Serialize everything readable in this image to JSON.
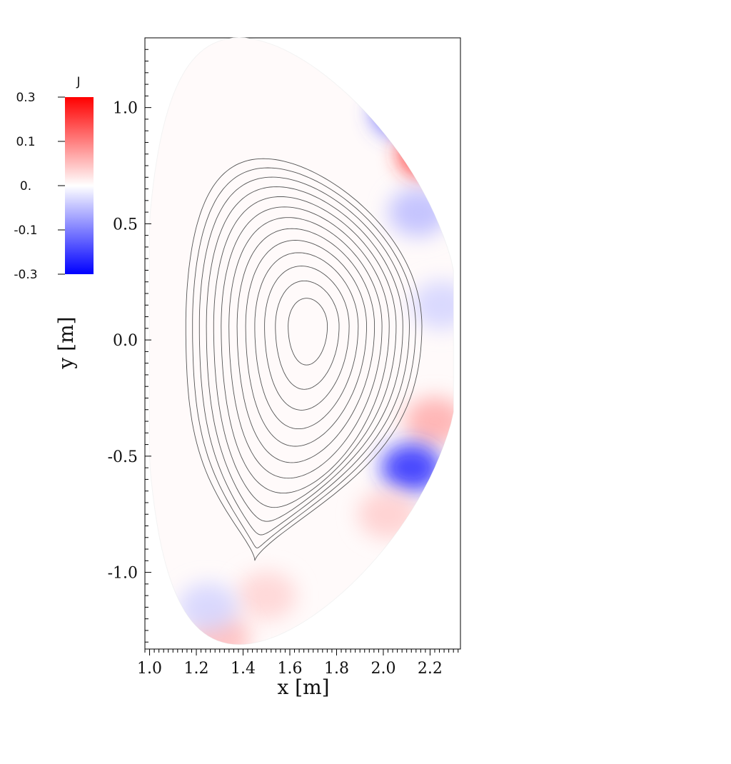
{
  "chart_data": {
    "type": "heatmap",
    "xlabel": "x [m]",
    "ylabel": "y [m]",
    "xlim": [
      0.98,
      2.33
    ],
    "ylim": [
      -1.33,
      1.3
    ],
    "x_ticks": [
      "1.0",
      "1.2",
      "1.4",
      "1.6",
      "1.8",
      "2.0",
      "2.2"
    ],
    "x_tick_values": [
      1.0,
      1.2,
      1.4,
      1.6,
      1.8,
      2.0,
      2.2
    ],
    "y_ticks": [
      "1.0",
      "0.5",
      "0.0",
      "-0.5",
      "-1.0"
    ],
    "y_tick_values": [
      1.0,
      0.5,
      0.0,
      -0.5,
      -1.0
    ],
    "colorbar": {
      "title": "J",
      "tick_labels": [
        "0.3",
        "0.1",
        "0.",
        "-0.1",
        "-0.3"
      ],
      "tick_values": [
        0.3,
        0.1,
        0.0,
        -0.1,
        -0.3
      ],
      "range": [
        -0.3,
        0.3
      ],
      "colors": {
        "max": "#ff0000",
        "mid": "#ffffff",
        "min": "#0000ff"
      }
    },
    "boundary": {
      "r_inner": 1.0,
      "r_outer": 2.28,
      "z_max": 1.3,
      "z_min": -1.31
    },
    "flux_surfaces": {
      "axis": [
        1.68,
        0.06
      ],
      "separatrix_top": [
        1.6,
        0.78
      ],
      "x_point": [
        1.45,
        -0.95
      ],
      "r_left": 1.14,
      "r_right": 2.15,
      "count": 13
    },
    "patches": [
      {
        "x": 2.08,
        "y": 0.98,
        "value": -0.2
      },
      {
        "x": 2.19,
        "y": 0.8,
        "value": 0.25
      },
      {
        "x": 2.15,
        "y": 0.55,
        "value": -0.08
      },
      {
        "x": 2.22,
        "y": -0.35,
        "value": 0.1
      },
      {
        "x": 2.12,
        "y": -0.55,
        "value": -0.25
      },
      {
        "x": 2.02,
        "y": -0.75,
        "value": 0.06
      },
      {
        "x": 1.5,
        "y": -1.1,
        "value": 0.05
      },
      {
        "x": 1.3,
        "y": -1.28,
        "value": 0.08
      },
      {
        "x": 1.25,
        "y": -1.15,
        "value": -0.05
      },
      {
        "x": 2.25,
        "y": 0.15,
        "value": -0.05
      }
    ]
  }
}
